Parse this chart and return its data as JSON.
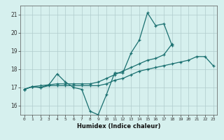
{
  "title": "",
  "xlabel": "Humidex (Indice chaleur)",
  "ylabel": "",
  "xlim": [
    -0.5,
    23.5
  ],
  "ylim": [
    15.5,
    21.5
  ],
  "yticks": [
    16,
    17,
    18,
    19,
    20,
    21
  ],
  "xticks": [
    0,
    1,
    2,
    3,
    4,
    5,
    6,
    7,
    8,
    9,
    10,
    11,
    12,
    13,
    14,
    15,
    16,
    17,
    18,
    19,
    20,
    21,
    22,
    23
  ],
  "background_color": "#d6f0ee",
  "grid_color": "#b0cccc",
  "line_color": "#1a7070",
  "line1_x": [
    0,
    1,
    2,
    3,
    4,
    5,
    6,
    7,
    8,
    9,
    10,
    11,
    12,
    13,
    14,
    15,
    16,
    17,
    18
  ],
  "line1_y": [
    16.9,
    17.05,
    17.1,
    17.15,
    17.75,
    17.3,
    17.0,
    16.9,
    15.7,
    15.5,
    16.6,
    17.8,
    17.8,
    18.9,
    19.6,
    21.1,
    20.4,
    20.5,
    19.3
  ],
  "line2_x": [
    0,
    1,
    2,
    3,
    4,
    5,
    6,
    7,
    8,
    9,
    10,
    11,
    12,
    13,
    14,
    15,
    16,
    17,
    18
  ],
  "line2_y": [
    16.9,
    17.05,
    17.0,
    17.15,
    17.2,
    17.2,
    17.2,
    17.2,
    17.2,
    17.3,
    17.5,
    17.7,
    17.9,
    18.1,
    18.3,
    18.5,
    18.6,
    18.8,
    19.4
  ],
  "line3_x": [
    0,
    1,
    2,
    3,
    4,
    5,
    6,
    7,
    8,
    9,
    10,
    11,
    12,
    13,
    14,
    15,
    16,
    17,
    18,
    19,
    20,
    21,
    22,
    23
  ],
  "line3_y": [
    16.9,
    17.05,
    17.0,
    17.1,
    17.1,
    17.1,
    17.1,
    17.1,
    17.1,
    17.1,
    17.2,
    17.4,
    17.5,
    17.7,
    17.9,
    18.0,
    18.1,
    18.2,
    18.3,
    18.4,
    18.5,
    18.7,
    18.7,
    18.2
  ]
}
